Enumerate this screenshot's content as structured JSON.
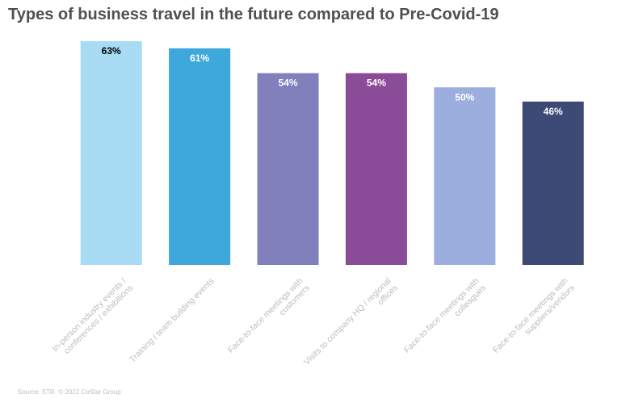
{
  "chart_data": {
    "type": "bar",
    "title": "Types of business travel in the future compared to Pre-Covid-19",
    "categories": [
      "In-person industry events / conferences / exhibitions",
      "Training / team building events",
      "Face-to-face meetings with customers",
      "Visits to company HQ / regional offices",
      "Face-to-face meetings with colleagues",
      "Face-to-face meetings with suppliers/vendors"
    ],
    "values": [
      63,
      61,
      54,
      54,
      50,
      46
    ],
    "value_labels": [
      "63%",
      "61%",
      "54%",
      "54%",
      "50%",
      "46%"
    ],
    "colors": [
      "#a8dcf5",
      "#3ea7dc",
      "#8080bd",
      "#8a4b98",
      "#9baede",
      "#3c4a75"
    ],
    "value_label_colors": [
      "#000000",
      "#ffffff",
      "#ffffff",
      "#ffffff",
      "#ffffff",
      "#ffffff"
    ],
    "source": "Source: STR. © 2022 CoStar Group"
  }
}
